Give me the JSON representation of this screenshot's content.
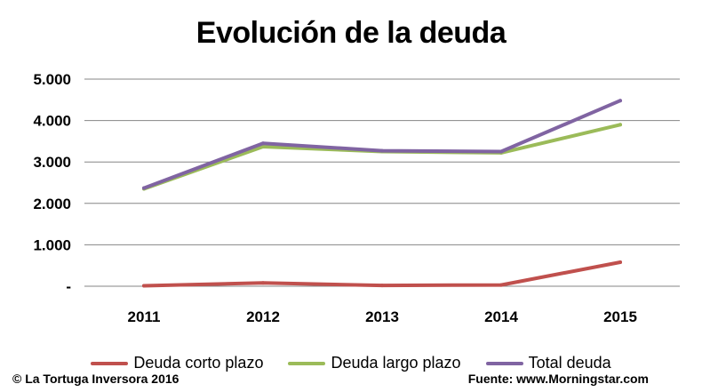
{
  "colors": {
    "deuda_corto": "#C0504D",
    "deuda_largo": "#9BBB59",
    "total": "#8064A2",
    "grid": "#868686"
  },
  "chart_data": {
    "type": "line",
    "title": "Evolución de la deuda",
    "categories": [
      "2011",
      "2012",
      "2013",
      "2014",
      "2015"
    ],
    "ylim": [
      0,
      5000
    ],
    "yticks": [
      {
        "value": 0,
        "label": "-"
      },
      {
        "value": 1000,
        "label": "1.000"
      },
      {
        "value": 2000,
        "label": "2.000"
      },
      {
        "value": 3000,
        "label": "3.000"
      },
      {
        "value": 4000,
        "label": "4.000"
      },
      {
        "value": 5000,
        "label": "5.000"
      }
    ],
    "grid": true,
    "legend_position": "bottom",
    "series": [
      {
        "name": "Deuda corto plazo",
        "values": [
          10,
          80,
          20,
          30,
          580
        ],
        "color_key": "deuda_corto"
      },
      {
        "name": "Deuda largo plazo",
        "values": [
          2350,
          3370,
          3250,
          3220,
          3900
        ],
        "color_key": "deuda_largo"
      },
      {
        "name": "Total deuda",
        "values": [
          2370,
          3450,
          3270,
          3250,
          4480
        ],
        "color_key": "total"
      }
    ]
  },
  "footer": {
    "left": "© La Tortuga Inversora 2016",
    "right": "Fuente: www.Morningstar.com"
  }
}
